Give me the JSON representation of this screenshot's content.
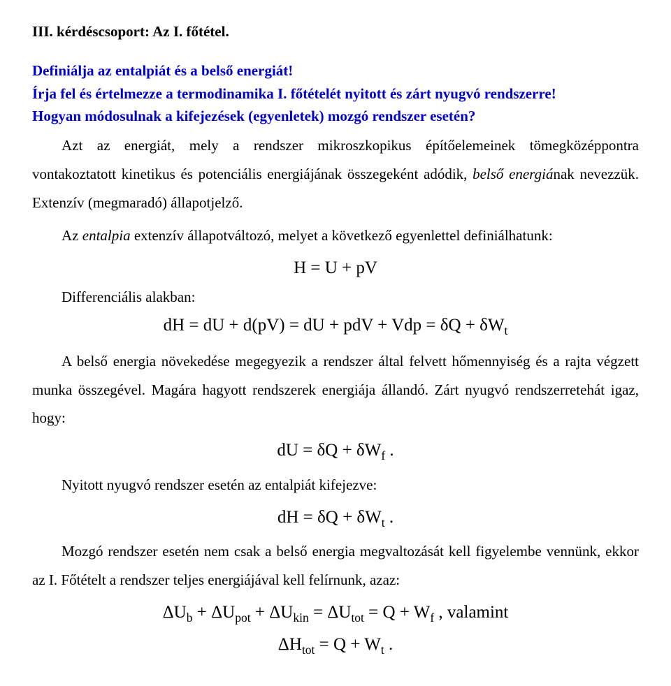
{
  "heading": "III. kérdéscsoport: Az I. főtétel.",
  "question": {
    "line1": "Definiálja az entalpiát és a belső energiát!",
    "line2": "Írja fel és értelmezze a termodinamika I. főtételét nyitott és zárt nyugvó rendszerre!",
    "line3": "Hogyan módosulnak a kifejezések (egyenletek) mozgó rendszer esetén?"
  },
  "para1_a": "Azt az energiát, mely a rendszer mikroszkopikus építőelemeinek tömegközéppontra vontakoztatott kinetikus és potenciális energiájának összegeként adódik, ",
  "para1_b": "belső energiá",
  "para1_c": "nak nevezzük. Extenzív (megmaradó) állapotjelző.",
  "para2_a": "Az ",
  "para2_b": "entalpia",
  "para2_c": " extenzív állapotváltozó, melyet a következő egyenlettel definiálhatunk:",
  "eq1": "H = U + pV",
  "diff_label": "Differenciális alakban:",
  "eq2": "dH = dU + d(pV) = dU + pdV + Vdp = δQ + δW",
  "eq2_sub": "t",
  "para3": "A belső energia növekedése megegyezik a rendszer által felvett hőmennyiség és a rajta végzett munka összegével. Magára hagyott rendszerek energiája állandó. Zárt nyugvó rendszerretehát igaz, hogy:",
  "eq3_a": "dU = δQ + δW",
  "eq3_sub": "f",
  "eq3_end": " .",
  "para4": "Nyitott nyugvó rendszer esetén az entalpiát kifejezve:",
  "eq4_a": "dH = δQ + δW",
  "eq4_sub": "t",
  "eq4_end": " .",
  "para5": "Mozgó rendszer esetén nem csak a belső energia megvaltozását kell figyelembe vennünk, ekkor az I. Főtételt a rendszer teljes energiájával kell felírnunk, azaz:",
  "eq5_a": "ΔU",
  "eq5_b": " + ΔU",
  "eq5_c": " + ΔU",
  "eq5_d": " = ΔU",
  "eq5_e": " = Q + W",
  "eq5_sub1": "b",
  "eq5_sub2": "pot",
  "eq5_sub3": "kin",
  "eq5_sub4": "tot",
  "eq5_sub5": "f",
  "eq5_end": " , valamint",
  "eq6_a": "ΔH",
  "eq6_sub1": "tot",
  "eq6_b": " = Q + W",
  "eq6_sub2": "t",
  "eq6_end": " .",
  "colors": {
    "text": "#000000",
    "heading_blue": "#0000cf",
    "background": "#ffffff"
  },
  "fonts": {
    "family": "Times New Roman",
    "body_size_pt": 16,
    "heading_size_pt": 16,
    "equation_size_pt": 19
  }
}
